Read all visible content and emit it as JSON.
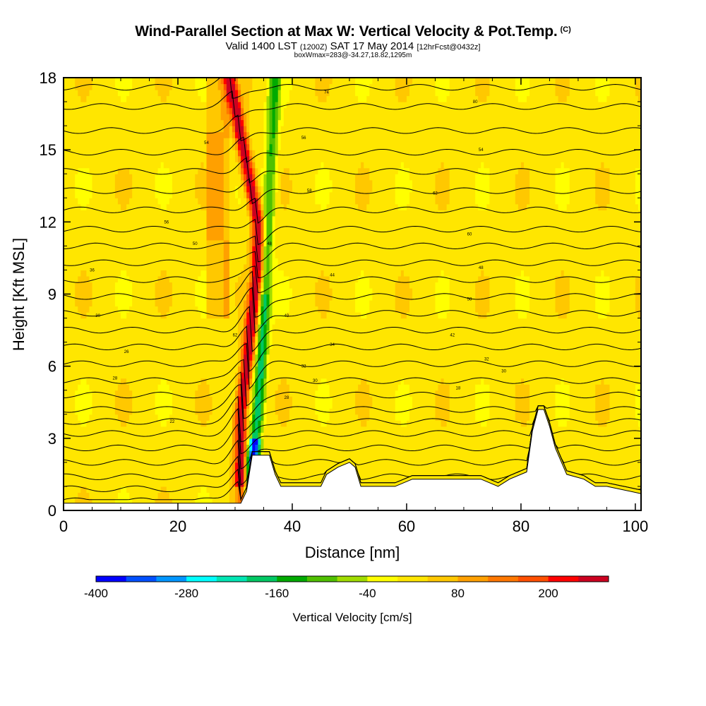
{
  "title": "Wind-Parallel Section at Max W: Vertical Velocity & Pot.Temp.",
  "title_tag": "(C)",
  "subtitle": {
    "valid": "Valid 1400 LST",
    "utc": "(1200Z)",
    "date": "SAT 17 May 2014",
    "forecast": "[12hrFcst@0432z]"
  },
  "box_info": "boxWmax=283@-34.27,18.82,1295m",
  "chart_data": {
    "type": "heatmap",
    "xlabel": "Distance [nm]",
    "ylabel": "Height [Kft MSL]",
    "xlim": [
      0,
      101
    ],
    "ylim": [
      0,
      18
    ],
    "x_ticks": [
      0,
      20,
      40,
      60,
      80,
      100
    ],
    "y_ticks": [
      0,
      3,
      6,
      9,
      12,
      15,
      18
    ],
    "background_value_cm_s": 0,
    "colorbar": {
      "label": "Vertical Velocity [cm/s]",
      "bounds": [
        -400,
        -360,
        -320,
        -280,
        -240,
        -200,
        -160,
        -120,
        -80,
        -40,
        0,
        40,
        80,
        120,
        160,
        200,
        240,
        280
      ],
      "colors": [
        "#0000ff",
        "#0050ff",
        "#0096ff",
        "#00ffff",
        "#00e6b4",
        "#00c864",
        "#00aa00",
        "#50c000",
        "#a0dc00",
        "#ffff00",
        "#ffe600",
        "#ffc800",
        "#ffa000",
        "#ff7800",
        "#ff5000",
        "#ff0000",
        "#cc0020"
      ],
      "tick_labels": [
        -400,
        -280,
        -160,
        -40,
        80,
        200
      ]
    },
    "updraft_core": {
      "x_nm": [
        31,
        31,
        32,
        33,
        34,
        34,
        29
      ],
      "height_kft": [
        2,
        4,
        6,
        8,
        10,
        12,
        18
      ],
      "max_w_cm_s": 283
    },
    "downdraft_core": {
      "x_nm": [
        33,
        33,
        34,
        35,
        37
      ],
      "height_kft": [
        1,
        2,
        4,
        8,
        18
      ],
      "min_w_cm_s": -400
    },
    "terrain_profile": {
      "x_nm": [
        0,
        31,
        32,
        33,
        36,
        37,
        38,
        45,
        46,
        48,
        50,
        51,
        52,
        58,
        61,
        73,
        76,
        78,
        81,
        82,
        83,
        84,
        85,
        86,
        88,
        91,
        93,
        95,
        101
      ],
      "height_kft": [
        0.3,
        0.3,
        0.8,
        2.3,
        2.3,
        1.5,
        1.0,
        1.0,
        1.5,
        1.8,
        2.0,
        1.8,
        1.0,
        1.0,
        1.3,
        1.3,
        1.0,
        1.3,
        1.6,
        3.3,
        4.2,
        4.2,
        3.5,
        2.6,
        1.5,
        1.3,
        1.0,
        1.0,
        0.7
      ]
    },
    "theta_contours_kft": [
      0.4,
      0.9,
      1.4,
      2.0,
      2.6,
      3.2,
      3.7,
      4.2,
      4.8,
      5.4,
      6.1,
      6.8,
      7.5,
      8.2,
      8.9,
      9.6,
      10.3,
      11.0,
      11.7,
      12.5,
      13.3,
      14.1,
      14.9,
      15.8,
      16.8,
      17.6
    ],
    "theta_contour_labels": [
      {
        "x_nm": 5,
        "y_kft": 10.0,
        "label": "36"
      },
      {
        "x_nm": 6,
        "y_kft": 8.1,
        "label": "30"
      },
      {
        "x_nm": 9,
        "y_kft": 5.5,
        "label": "28"
      },
      {
        "x_nm": 11,
        "y_kft": 6.6,
        "label": "26"
      },
      {
        "x_nm": 19,
        "y_kft": 3.7,
        "label": "22"
      },
      {
        "x_nm": 18,
        "y_kft": 12.0,
        "label": "56"
      },
      {
        "x_nm": 23,
        "y_kft": 11.1,
        "label": "50"
      },
      {
        "x_nm": 25,
        "y_kft": 15.3,
        "label": "54"
      },
      {
        "x_nm": 30,
        "y_kft": 7.3,
        "label": "62"
      },
      {
        "x_nm": 42,
        "y_kft": 15.5,
        "label": "56"
      },
      {
        "x_nm": 46,
        "y_kft": 17.4,
        "label": "74"
      },
      {
        "x_nm": 72,
        "y_kft": 17.0,
        "label": "80"
      },
      {
        "x_nm": 43,
        "y_kft": 13.3,
        "label": "58"
      },
      {
        "x_nm": 36,
        "y_kft": 11.1,
        "label": "48"
      },
      {
        "x_nm": 47,
        "y_kft": 9.8,
        "label": "44"
      },
      {
        "x_nm": 39,
        "y_kft": 8.1,
        "label": "40"
      },
      {
        "x_nm": 47,
        "y_kft": 6.9,
        "label": "34"
      },
      {
        "x_nm": 42,
        "y_kft": 6.0,
        "label": "32"
      },
      {
        "x_nm": 44,
        "y_kft": 5.4,
        "label": "30"
      },
      {
        "x_nm": 39,
        "y_kft": 4.7,
        "label": "28"
      },
      {
        "x_nm": 65,
        "y_kft": 13.2,
        "label": "62"
      },
      {
        "x_nm": 71,
        "y_kft": 11.5,
        "label": "60"
      },
      {
        "x_nm": 73,
        "y_kft": 10.1,
        "label": "48"
      },
      {
        "x_nm": 71,
        "y_kft": 8.8,
        "label": "58"
      },
      {
        "x_nm": 68,
        "y_kft": 7.3,
        "label": "42"
      },
      {
        "x_nm": 74,
        "y_kft": 6.3,
        "label": "32"
      },
      {
        "x_nm": 77,
        "y_kft": 5.8,
        "label": "30"
      },
      {
        "x_nm": 69,
        "y_kft": 5.1,
        "label": "18"
      },
      {
        "x_nm": 73,
        "y_kft": 15.0,
        "label": "54"
      }
    ]
  }
}
